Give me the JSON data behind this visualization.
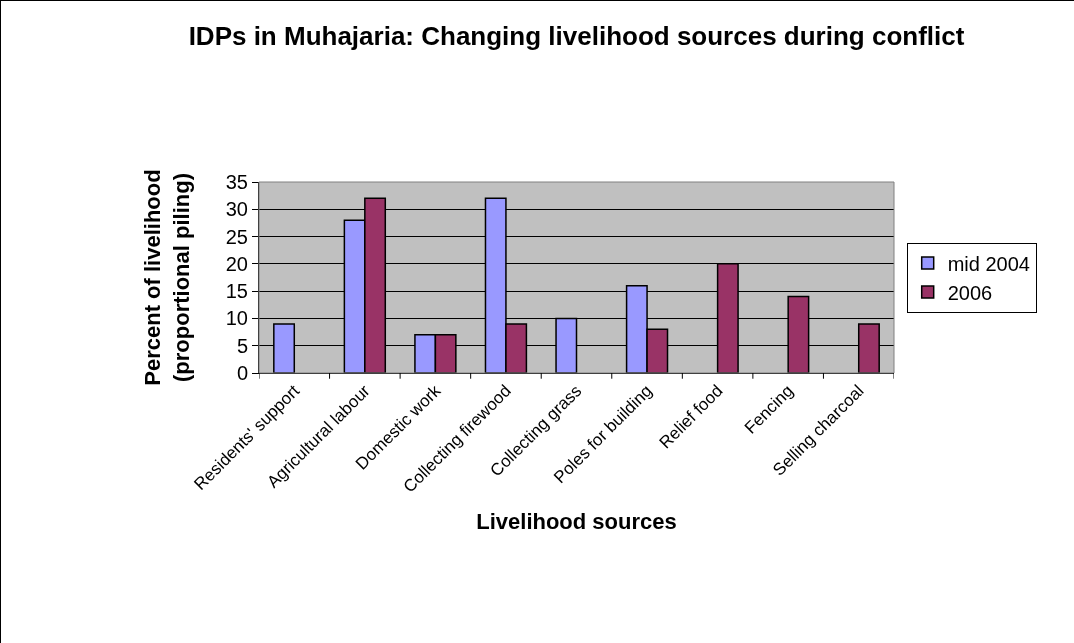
{
  "chart_data": {
    "type": "bar",
    "title": "IDPs in Muhajaria: Changing livelihood sources during conflict",
    "xlabel": "Livelihood sources",
    "ylabel": "Percent of livelihood (proportional piling)",
    "categories": [
      "Residents' support",
      "Agricultural labour",
      "Domestic work",
      "Collecting firewood",
      "Collecting grass",
      "Poles for building",
      "Relief food",
      "Fencing",
      "Selling charcoal"
    ],
    "series": [
      {
        "name": "mid 2004",
        "color": "#9999ff",
        "values": [
          9,
          28,
          7,
          32,
          10,
          16,
          null,
          null,
          null
        ]
      },
      {
        "name": "2006",
        "color": "#993366",
        "values": [
          null,
          32,
          7,
          9,
          null,
          8,
          20,
          14,
          9
        ]
      }
    ],
    "ylim": [
      0,
      35
    ],
    "yticks": [
      0,
      5,
      10,
      15,
      20,
      25,
      30,
      35
    ],
    "grid": "y",
    "legend": "right"
  }
}
